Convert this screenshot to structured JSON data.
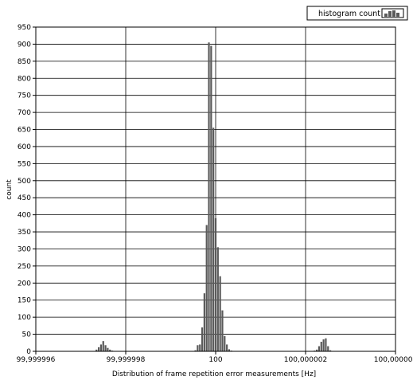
{
  "chart_data": {
    "type": "bar",
    "title": "",
    "xlabel": "Distribution of frame repetition error measurements [Hz]",
    "ylabel": "count",
    "ylim": [
      0,
      950
    ],
    "y_ticks": [
      0,
      50,
      100,
      150,
      200,
      250,
      300,
      350,
      400,
      450,
      500,
      550,
      600,
      650,
      700,
      750,
      800,
      850,
      900,
      950
    ],
    "xlim": [
      99.999996,
      100.000004
    ],
    "x_ticks": [
      {
        "value": 99.999996,
        "label": "99,999996"
      },
      {
        "value": 99.999998,
        "label": "99,999998"
      },
      {
        "value": 100.0,
        "label": "100"
      },
      {
        "value": 100.000002,
        "label": "100,000002"
      },
      {
        "value": 100.000004,
        "label": "100,000004"
      }
    ],
    "grid": true,
    "legend_position": "top-right",
    "bar_color": "#5a5a5a",
    "series": [
      {
        "name": "histogram count",
        "x": [
          99.99999735,
          99.9999974,
          99.99999745,
          99.9999975,
          99.99999755,
          99.9999976,
          99.99999765,
          99.9999977,
          99.99999775,
          99.9999978,
          99.99999785,
          99.9999979,
          99.99999795,
          99.999998,
          99.99999805,
          99.9999981,
          99.99999815,
          99.9999982,
          99.99999825,
          99.9999983,
          99.99999835,
          99.9999984,
          99.99999845,
          99.9999985,
          99.99999855,
          99.9999986,
          99.99999865,
          99.9999987,
          99.99999875,
          99.9999988,
          99.99999885,
          99.9999989,
          99.99999895,
          99.999999,
          99.99999905,
          99.9999991,
          99.99999915,
          99.9999992,
          99.99999925,
          99.9999993,
          99.99999935,
          99.9999994,
          99.99999945,
          99.9999995,
          99.99999955,
          99.9999996,
          99.99999965,
          99.9999997,
          99.99999975,
          99.9999998,
          99.99999985,
          99.9999999,
          99.99999995,
          100.0,
          100.00000005,
          100.0000001,
          100.00000015,
          100.0000002,
          100.00000025,
          100.0000003,
          100.00000035,
          100.0000004,
          100.00000045,
          100.0000005,
          100.00000055,
          100.0000006,
          100.00000065,
          100.0000007,
          100.00000075,
          100.0000008,
          100.00000085,
          100.0000009,
          100.00000095,
          100.000001,
          100.00000105,
          100.0000011,
          100.00000115,
          100.0000012,
          100.00000125,
          100.0000013,
          100.00000135,
          100.0000014,
          100.00000145,
          100.0000015,
          100.00000155,
          100.0000016,
          100.00000165,
          100.0000017,
          100.00000175,
          100.0000018,
          100.00000185,
          100.0000019,
          100.00000195,
          100.000002,
          100.00000205,
          100.0000021,
          100.00000215,
          100.0000022,
          100.00000225,
          100.0000023,
          100.00000235,
          100.0000024,
          100.00000245,
          100.0000025,
          100.00000255
        ],
        "values": [
          5,
          12,
          20,
          30,
          18,
          10,
          5,
          2,
          1,
          1,
          1,
          1,
          1,
          1,
          1,
          1,
          1,
          1,
          1,
          1,
          1,
          1,
          1,
          1,
          1,
          1,
          1,
          1,
          1,
          1,
          1,
          1,
          1,
          1,
          1,
          1,
          1,
          1,
          1,
          1,
          1,
          1,
          1,
          1,
          3,
          18,
          20,
          70,
          170,
          370,
          905,
          895,
          655,
          390,
          305,
          220,
          120,
          45,
          20,
          6,
          2,
          1,
          1,
          1,
          1,
          1,
          1,
          1,
          1,
          1,
          1,
          1,
          1,
          1,
          1,
          1,
          1,
          1,
          1,
          1,
          1,
          1,
          1,
          1,
          1,
          1,
          1,
          1,
          1,
          1,
          1,
          1,
          1,
          1,
          1,
          1,
          1,
          2,
          5,
          15,
          28,
          35,
          38,
          15,
          3
        ]
      }
    ]
  }
}
